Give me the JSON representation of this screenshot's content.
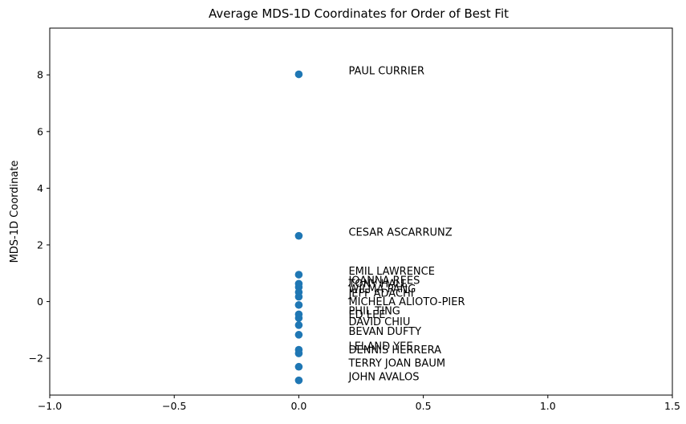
{
  "chart_data": {
    "type": "scatter",
    "title": "Average MDS-1D Coordinates for Order of Best Fit",
    "xlabel": "",
    "ylabel": "MDS-1D Coordinate",
    "xlim": [
      -1.0,
      1.5
    ],
    "ylim": [
      -3.3,
      9.65
    ],
    "x_ticks": [
      -1.0,
      -0.5,
      0.0,
      0.5,
      1.0,
      1.5
    ],
    "x_tick_labels": [
      "−1.0",
      "−0.5",
      "0.0",
      "0.5",
      "1.0",
      "1.5"
    ],
    "y_ticks": [
      -2,
      0,
      2,
      4,
      6,
      8
    ],
    "y_tick_labels": [
      "−2",
      "0",
      "2",
      "4",
      "6",
      "8"
    ],
    "grid": false,
    "marker_color": "#1f77b4",
    "label_x_offset": 0.2,
    "points": [
      {
        "name": "PAUL CURRIER",
        "x": 0,
        "y": 8.02
      },
      {
        "name": "CESAR ASCARRUNZ",
        "x": 0,
        "y": 2.32
      },
      {
        "name": "EMIL LAWRENCE",
        "x": 0,
        "y": 0.95
      },
      {
        "name": "JOANNA REES",
        "x": 0,
        "y": 0.63
      },
      {
        "name": "TONY HALL",
        "x": 0,
        "y": 0.51
      },
      {
        "name": "WILMA PANG",
        "x": 0,
        "y": 0.33
      },
      {
        "name": "JEFF ADACHI",
        "x": 0,
        "y": 0.17
      },
      {
        "name": "MICHELA ALIOTO-PIER",
        "x": 0,
        "y": -0.12
      },
      {
        "name": "PHIL TING",
        "x": 0,
        "y": -0.45
      },
      {
        "name": "ED LEE",
        "x": 0,
        "y": -0.58
      },
      {
        "name": "DAVID CHIU",
        "x": 0,
        "y": -0.83
      },
      {
        "name": "BEVAN DUFTY",
        "x": 0,
        "y": -1.17
      },
      {
        "name": "LELAND YEE",
        "x": 0,
        "y": -1.7
      },
      {
        "name": "DENNIS HERRERA",
        "x": 0,
        "y": -1.83
      },
      {
        "name": "TERRY JOAN BAUM",
        "x": 0,
        "y": -2.3
      },
      {
        "name": "JOHN AVALOS",
        "x": 0,
        "y": -2.78
      }
    ]
  }
}
